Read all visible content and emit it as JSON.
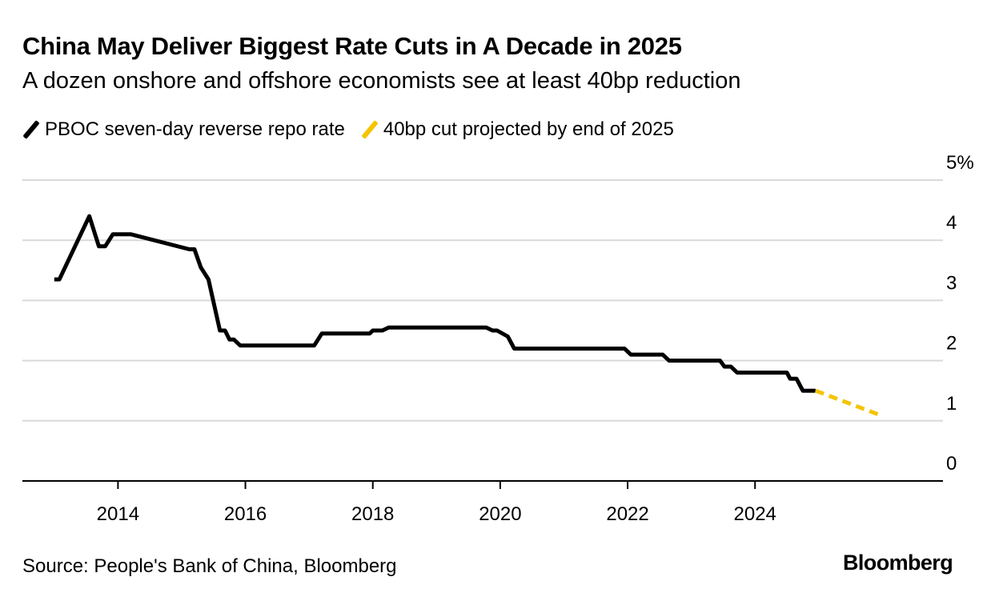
{
  "title": "China May Deliver Biggest Rate Cuts in A Decade in 2025",
  "subtitle": "A dozen onshore and offshore economists see at least 40bp reduction",
  "source": "Source: People's Bank of China, Bloomberg",
  "brand": "Bloomberg",
  "colors": {
    "actual": "#000000",
    "projection": "#f5c400",
    "grid": "#d9d9d9",
    "axis": "#000000"
  },
  "legend": [
    {
      "label": "PBOC seven-day reverse repo rate",
      "color": "#000000"
    },
    {
      "label": "40bp cut projected by end of 2025",
      "color": "#f5c400"
    }
  ],
  "chart_data": {
    "type": "line",
    "title": "China May Deliver Biggest Rate Cuts in A Decade in 2025",
    "xlabel": "",
    "ylabel": "",
    "xlim": [
      2012.5,
      2026.95
    ],
    "ylim": [
      0,
      5
    ],
    "x_ticks": [
      2014,
      2016,
      2018,
      2020,
      2022,
      2024
    ],
    "x_tick_labels": [
      "2014",
      "2016",
      "2018",
      "2020",
      "2022",
      "2024"
    ],
    "y_ticks": [
      0,
      1,
      2,
      3,
      4,
      5
    ],
    "y_tick_labels": [
      "0",
      "1",
      "2",
      "3",
      "4",
      "5%"
    ],
    "series": [
      {
        "name": "PBOC seven-day reverse repo rate",
        "style": "solid",
        "color": "#000000",
        "points": [
          [
            2013.0,
            3.35
          ],
          [
            2013.08,
            3.35
          ],
          [
            2013.55,
            4.4
          ],
          [
            2013.7,
            3.9
          ],
          [
            2013.8,
            3.9
          ],
          [
            2013.92,
            4.1
          ],
          [
            2014.05,
            4.1
          ],
          [
            2014.2,
            4.1
          ],
          [
            2015.12,
            3.85
          ],
          [
            2015.2,
            3.85
          ],
          [
            2015.3,
            3.55
          ],
          [
            2015.42,
            3.35
          ],
          [
            2015.6,
            2.5
          ],
          [
            2015.68,
            2.5
          ],
          [
            2015.75,
            2.35
          ],
          [
            2015.82,
            2.35
          ],
          [
            2015.92,
            2.25
          ],
          [
            2017.08,
            2.25
          ],
          [
            2017.2,
            2.45
          ],
          [
            2017.95,
            2.45
          ],
          [
            2018.0,
            2.5
          ],
          [
            2018.15,
            2.5
          ],
          [
            2018.25,
            2.55
          ],
          [
            2019.78,
            2.55
          ],
          [
            2019.88,
            2.5
          ],
          [
            2019.95,
            2.5
          ],
          [
            2020.12,
            2.4
          ],
          [
            2020.22,
            2.2
          ],
          [
            2021.95,
            2.2
          ],
          [
            2022.05,
            2.1
          ],
          [
            2022.55,
            2.1
          ],
          [
            2022.65,
            2.0
          ],
          [
            2023.45,
            2.0
          ],
          [
            2023.52,
            1.9
          ],
          [
            2023.62,
            1.9
          ],
          [
            2023.72,
            1.8
          ],
          [
            2024.5,
            1.8
          ],
          [
            2024.55,
            1.7
          ],
          [
            2024.65,
            1.7
          ],
          [
            2024.75,
            1.5
          ],
          [
            2024.95,
            1.5
          ]
        ]
      },
      {
        "name": "40bp cut projected by end of 2025",
        "style": "dashed",
        "color": "#f5c400",
        "points": [
          [
            2024.95,
            1.5
          ],
          [
            2025.95,
            1.1
          ]
        ]
      }
    ]
  }
}
